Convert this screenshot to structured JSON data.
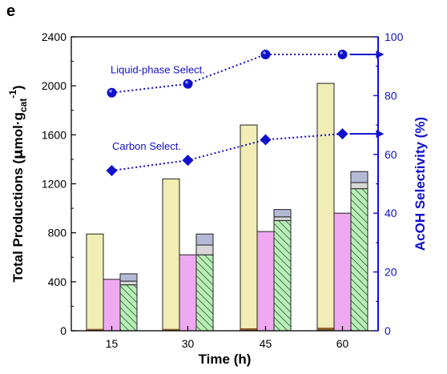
{
  "panel_label": "e",
  "colors": {
    "left_axis": "#000000",
    "right_axis": "#1010cc",
    "bar_1": "#f1edb5",
    "bar_2": "#eea9f0",
    "bar_3": "#b5f0b5",
    "bar_3_cap_a": "#d7d7d7",
    "bar_3_cap_b": "#b4bad6"
  },
  "chart_data": {
    "type": "bar",
    "categories": [
      "15",
      "30",
      "45",
      "60"
    ],
    "xlabel": "Time (h)",
    "ylabel_left": {
      "main": "Total Productions (",
      "mu": "μ",
      "mol": "mol·g",
      "cat": "cat",
      "exp": "-1",
      "close": ")"
    },
    "ylabel_right": "AcOH Selectivity (%)",
    "ylim_left": [
      0,
      2400
    ],
    "yticks_left": [
      "0",
      "400",
      "800",
      "1200",
      "1600",
      "2000",
      "2400"
    ],
    "ylim_right": [
      0,
      100
    ],
    "yticks_right": [
      "0",
      "20",
      "40",
      "60",
      "80",
      "100"
    ],
    "bar_groups": [
      {
        "category": "15",
        "bars": [
          {
            "total": 790,
            "base": 15
          },
          {
            "total": 420
          },
          {
            "main": 375,
            "mid": 405,
            "total": 465
          }
        ]
      },
      {
        "category": "30",
        "bars": [
          {
            "total": 1240,
            "base": 15
          },
          {
            "total": 620
          },
          {
            "main": 620,
            "mid": 700,
            "total": 790
          }
        ]
      },
      {
        "category": "45",
        "bars": [
          {
            "total": 1680,
            "base": 20
          },
          {
            "total": 810
          },
          {
            "main": 900,
            "mid": 930,
            "total": 990
          }
        ]
      },
      {
        "category": "60",
        "bars": [
          {
            "total": 2020,
            "base": 25
          },
          {
            "total": 960
          },
          {
            "main": 1160,
            "mid": 1210,
            "total": 1300
          }
        ]
      }
    ],
    "lines": [
      {
        "name": "Liquid-phase Select.",
        "marker": "circle",
        "values": [
          81,
          84,
          94,
          94
        ]
      },
      {
        "name": "Carbon Select.",
        "marker": "diamond",
        "values": [
          54.5,
          58,
          65,
          67
        ]
      }
    ]
  }
}
